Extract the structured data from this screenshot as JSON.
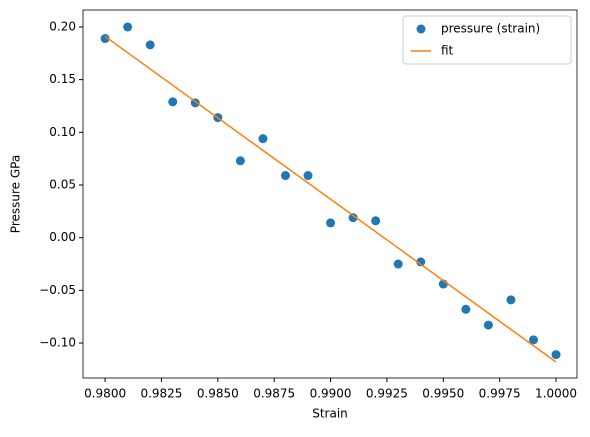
{
  "chart_data": {
    "type": "scatter",
    "x_label": "Strain",
    "y_label": "Pressure GPa",
    "xlim": [
      0.97902,
      1.00093
    ],
    "ylim": [
      -0.1332,
      0.2161
    ],
    "xticks": [
      {
        "value": 0.98,
        "label": "0.9800"
      },
      {
        "value": 0.9825,
        "label": "0.9825"
      },
      {
        "value": 0.985,
        "label": "0.9850"
      },
      {
        "value": 0.9875,
        "label": "0.9875"
      },
      {
        "value": 0.99,
        "label": "0.9900"
      },
      {
        "value": 0.9925,
        "label": "0.9925"
      },
      {
        "value": 0.995,
        "label": "0.9950"
      },
      {
        "value": 0.9975,
        "label": "0.9975"
      },
      {
        "value": 1.0,
        "label": "1.0000"
      }
    ],
    "yticks": [
      {
        "value": -0.1,
        "label": "−0.10"
      },
      {
        "value": -0.05,
        "label": "−0.05"
      },
      {
        "value": 0,
        "label": "0.00"
      },
      {
        "value": 0.05,
        "label": "0.05"
      },
      {
        "value": 0.1,
        "label": "0.10"
      },
      {
        "value": 0.15,
        "label": "0.15"
      },
      {
        "value": 0.2,
        "label": "0.20"
      }
    ],
    "legend": "upper right",
    "series": [
      {
        "name": "pressure (strain)",
        "type": "scatter",
        "color": "#1f77b4",
        "x": [
          0.98,
          0.981,
          0.982,
          0.983,
          0.984,
          0.985,
          0.986,
          0.987,
          0.988,
          0.989,
          0.99,
          0.991,
          0.992,
          0.993,
          0.994,
          0.995,
          0.996,
          0.997,
          0.998,
          0.999,
          1.0
        ],
        "values": [
          0.189,
          0.2,
          0.183,
          0.129,
          0.128,
          0.114,
          0.073,
          0.094,
          0.059,
          0.059,
          0.014,
          0.019,
          0.016,
          -0.025,
          -0.023,
          -0.044,
          -0.068,
          -0.083,
          -0.059,
          -0.097,
          -0.111
        ]
      },
      {
        "name": "fit",
        "type": "line",
        "color": "#ff7f0e",
        "x": [
          0.98,
          1.0
        ],
        "values": [
          0.191,
          -0.118
        ]
      }
    ]
  }
}
